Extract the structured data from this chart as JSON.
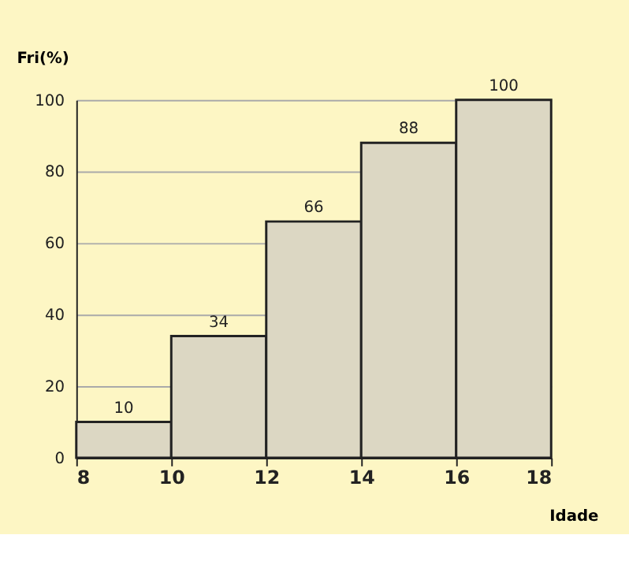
{
  "chart_data": {
    "type": "histogram",
    "xlabel": "Idade",
    "ylabel": "Fri(%)",
    "bins": [
      8,
      10,
      12,
      14,
      16,
      18
    ],
    "values": [
      10,
      34,
      66,
      88,
      100
    ],
    "color": "#dcd7c3",
    "xlim": [
      8,
      18
    ],
    "xticks": [
      8,
      10,
      12,
      14,
      16,
      18
    ],
    "ylim": [
      0,
      100
    ],
    "yticks": [
      0,
      20,
      40,
      60,
      80,
      100
    ],
    "grid": "y",
    "data_labels": true
  }
}
